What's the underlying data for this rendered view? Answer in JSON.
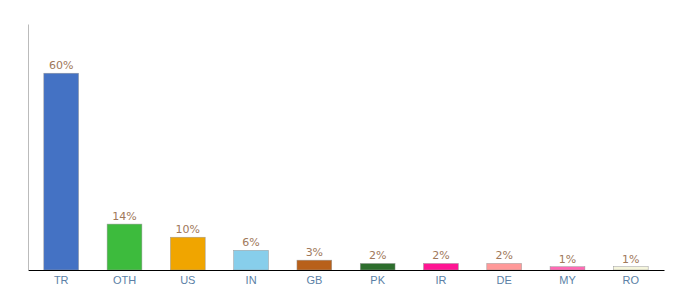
{
  "chart_data": {
    "type": "bar",
    "categories": [
      "TR",
      "OTH",
      "US",
      "IN",
      "GB",
      "PK",
      "IR",
      "DE",
      "MY",
      "RO"
    ],
    "values": [
      60,
      14,
      10,
      6,
      3,
      2,
      2,
      2,
      1,
      1
    ],
    "value_labels": [
      "60%",
      "14%",
      "10%",
      "6%",
      "3%",
      "2%",
      "2%",
      "2%",
      "1%",
      "1%"
    ],
    "colors": [
      "#4472c4",
      "#3dbb3d",
      "#f0a500",
      "#87ceeb",
      "#b8601a",
      "#2d6e2d",
      "#ff1493",
      "#ff9999",
      "#ff69b4",
      "#f5f5dc"
    ],
    "ylim": [
      0,
      75
    ],
    "data_labels": true,
    "tick_labels": "x",
    "grid": false
  }
}
